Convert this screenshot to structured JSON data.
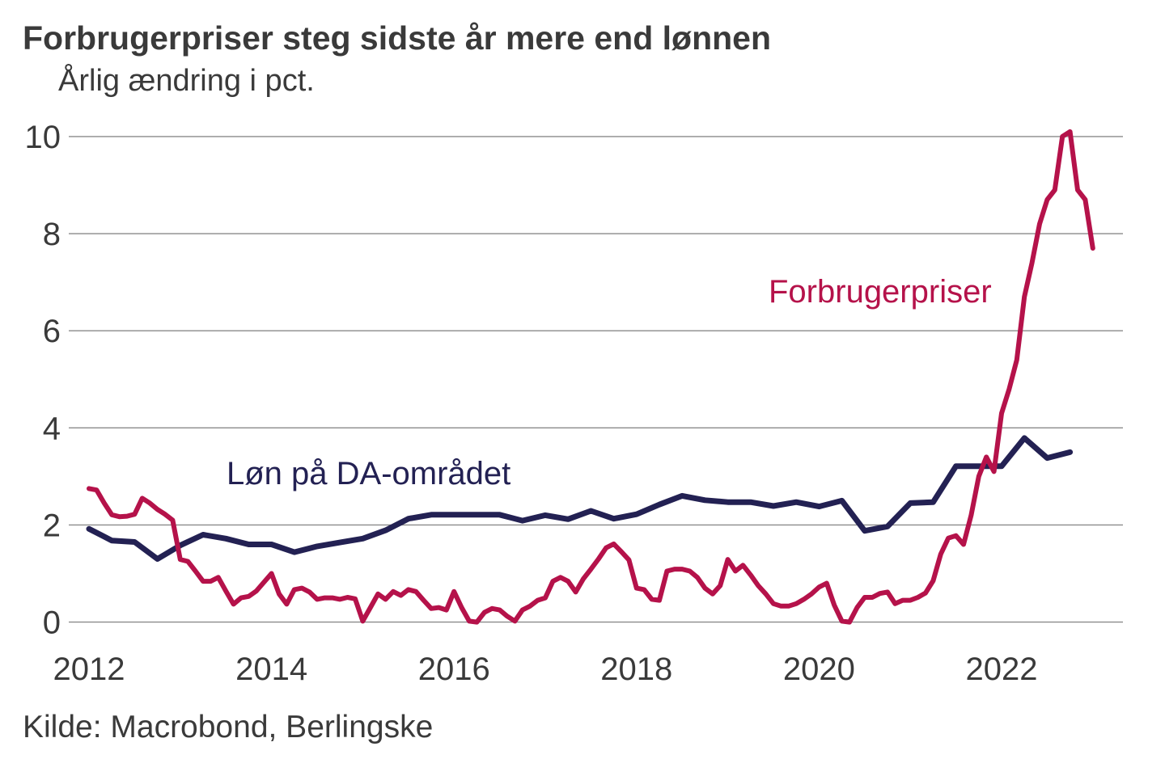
{
  "header": {
    "title": "Forbrugerpriser steg sidste år mere end lønnen",
    "subtitle": "Årlig ændring i pct."
  },
  "footer": {
    "source": "Kilde: Macrobond, Berlingske"
  },
  "colors": {
    "cpi_line": "#B5124A",
    "wages_line": "#232153",
    "grid": "#8a8a8a",
    "text": "#3a3a3a"
  },
  "chart_data": {
    "type": "line",
    "title": "Forbrugerpriser steg sidste år mere end lønnen",
    "subtitle": "Årlig ændring i pct.",
    "source": "Kilde: Macrobond, Berlingske",
    "xlabel": "",
    "ylabel": "Årlig ændring i pct.",
    "grid": true,
    "x_axis": {
      "ticks": [
        2012,
        2014,
        2016,
        2018,
        2020,
        2022
      ],
      "range": [
        2011.95,
        2023.35
      ]
    },
    "y_axis": {
      "ticks": [
        0,
        2,
        4,
        6,
        8,
        10
      ],
      "ylim": [
        0,
        10.2
      ]
    },
    "series": [
      {
        "name": "Løn på DA-området",
        "color": "#232153",
        "frequency": "quarter",
        "start_year": 2012,
        "values": [
          1.92,
          1.68,
          1.65,
          1.3,
          1.58,
          1.8,
          1.72,
          1.6,
          1.6,
          1.44,
          1.56,
          1.64,
          1.72,
          1.89,
          2.13,
          2.21,
          2.21,
          2.21,
          2.21,
          2.09,
          2.2,
          2.12,
          2.29,
          2.13,
          2.22,
          2.42,
          2.6,
          2.51,
          2.47,
          2.47,
          2.39,
          2.47,
          2.38,
          2.5,
          1.88,
          1.97,
          2.45,
          2.47,
          3.21,
          3.21,
          3.21,
          3.79,
          3.38,
          3.5
        ]
      },
      {
        "name": "Forbrugerpriser",
        "color": "#B5124A",
        "frequency": "month",
        "start_year": 2012,
        "values": [
          2.75,
          2.72,
          2.45,
          2.21,
          2.17,
          2.18,
          2.22,
          2.55,
          2.45,
          2.32,
          2.22,
          2.1,
          1.29,
          1.25,
          1.05,
          0.84,
          0.84,
          0.92,
          0.64,
          0.37,
          0.5,
          0.53,
          0.64,
          0.82,
          1.0,
          0.58,
          0.37,
          0.67,
          0.7,
          0.62,
          0.47,
          0.5,
          0.5,
          0.47,
          0.51,
          0.48,
          0.02,
          0.3,
          0.58,
          0.47,
          0.63,
          0.55,
          0.67,
          0.63,
          0.45,
          0.28,
          0.3,
          0.25,
          0.63,
          0.3,
          0.02,
          0.0,
          0.2,
          0.28,
          0.25,
          0.12,
          0.02,
          0.25,
          0.33,
          0.45,
          0.5,
          0.84,
          0.92,
          0.84,
          0.62,
          0.89,
          1.09,
          1.3,
          1.53,
          1.61,
          1.45,
          1.28,
          0.7,
          0.67,
          0.47,
          0.45,
          1.05,
          1.09,
          1.09,
          1.05,
          0.92,
          0.7,
          0.58,
          0.75,
          1.29,
          1.05,
          1.17,
          0.97,
          0.75,
          0.58,
          0.38,
          0.33,
          0.33,
          0.38,
          0.47,
          0.58,
          0.72,
          0.8,
          0.35,
          0.02,
          0.0,
          0.3,
          0.51,
          0.51,
          0.59,
          0.62,
          0.38,
          0.45,
          0.45,
          0.51,
          0.6,
          0.85,
          1.4,
          1.73,
          1.78,
          1.6,
          2.2,
          3.0,
          3.4,
          3.1,
          4.3,
          4.8,
          5.4,
          6.7,
          7.4,
          8.2,
          8.7,
          8.9,
          10.0,
          10.1,
          8.9,
          8.7,
          7.7
        ]
      }
    ],
    "series_labels": {
      "cpi": {
        "text": "Forbrugerpriser",
        "color": "#B5124A"
      },
      "wages": {
        "text": "Løn på DA-området",
        "color": "#232153"
      }
    },
    "legend_position": "inline-annotations"
  }
}
